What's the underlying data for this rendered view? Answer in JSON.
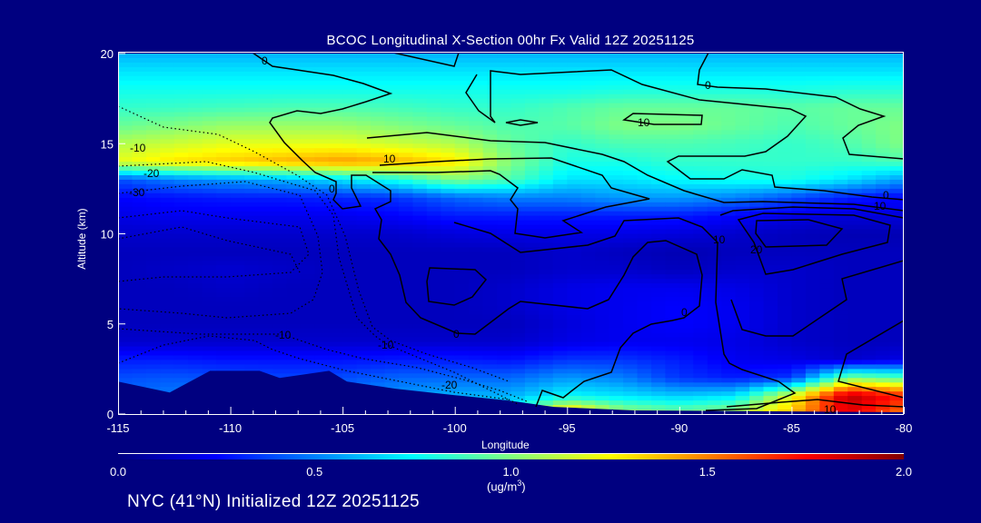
{
  "chart_data": {
    "type": "heatmap",
    "title": "BCOC Longitudinal X-Section 00hr  Fx Valid 12Z 20251125",
    "xlabel": "Longitude",
    "ylabel": "Altitude (km)",
    "xlim": [
      -115,
      -80
    ],
    "ylim": [
      0,
      20
    ],
    "x_ticks": [
      "-115",
      "-110",
      "-105",
      "-100",
      "-95",
      "-90",
      "-85",
      "-80"
    ],
    "x_tick_values": [
      -115,
      -110,
      -105,
      -100,
      -95,
      -90,
      -85,
      -80
    ],
    "y_ticks": [
      "0",
      "5",
      "10",
      "15",
      "20"
    ],
    "y_tick_values": [
      0,
      5,
      10,
      15,
      20
    ],
    "colorbar": {
      "range": [
        0,
        2
      ],
      "tick_labels": [
        "0.0",
        "0.5",
        "1.0",
        "1.5",
        "2.0"
      ],
      "tick_values": [
        0,
        0.5,
        1.0,
        1.5,
        2.0
      ],
      "units_prefix": "(ug/m",
      "units_sup": "3",
      "units_suffix": ")",
      "colors": [
        "#000080",
        "#0000ff",
        "#0080ff",
        "#00ffff",
        "#80ff80",
        "#ffff00",
        "#ff8000",
        "#ff0000",
        "#800000"
      ]
    },
    "lon": [
      -115,
      -112.5,
      -110,
      -107.5,
      -105,
      -102.5,
      -100,
      -97.5,
      -95,
      -92.5,
      -90,
      -87.5,
      -85,
      -82.5,
      -80
    ],
    "alt_desc": [
      20,
      19,
      18,
      17,
      16,
      15,
      14,
      13,
      12,
      11,
      10,
      9,
      8,
      7,
      6,
      5,
      4,
      3,
      2,
      1,
      0
    ],
    "z": [
      [
        0.6,
        0.6,
        0.6,
        0.6,
        0.6,
        0.6,
        0.6,
        0.6,
        0.6,
        0.6,
        0.6,
        0.6,
        0.6,
        0.6,
        0.6
      ],
      [
        0.7,
        0.7,
        0.7,
        0.7,
        0.7,
        0.7,
        0.7,
        0.7,
        0.7,
        0.7,
        0.7,
        0.7,
        0.7,
        0.7,
        0.7
      ],
      [
        0.78,
        0.78,
        0.78,
        0.78,
        0.78,
        0.78,
        0.78,
        0.78,
        0.78,
        0.8,
        0.8,
        0.8,
        0.8,
        0.82,
        0.82
      ],
      [
        0.85,
        0.86,
        0.88,
        0.9,
        0.9,
        0.88,
        0.85,
        0.85,
        0.9,
        0.95,
        0.95,
        0.95,
        0.92,
        0.95,
        0.95
      ],
      [
        0.95,
        1.0,
        1.05,
        1.05,
        1.05,
        1.0,
        0.95,
        0.9,
        0.92,
        1.0,
        1.0,
        0.95,
        0.9,
        0.95,
        1.0
      ],
      [
        1.1,
        1.15,
        1.2,
        1.2,
        1.2,
        1.15,
        1.1,
        0.95,
        0.85,
        0.9,
        0.9,
        0.88,
        0.85,
        0.9,
        1.0
      ],
      [
        1.2,
        1.3,
        1.35,
        1.4,
        1.45,
        1.4,
        1.3,
        1.0,
        0.8,
        0.8,
        0.85,
        0.85,
        0.85,
        0.85,
        0.9
      ],
      [
        0.4,
        0.5,
        0.55,
        0.6,
        0.7,
        0.8,
        1.0,
        0.9,
        0.7,
        0.7,
        0.75,
        0.78,
        0.8,
        0.7,
        0.55
      ],
      [
        0.25,
        0.28,
        0.3,
        0.3,
        0.32,
        0.35,
        0.45,
        0.5,
        0.5,
        0.55,
        0.55,
        0.5,
        0.4,
        0.3,
        0.25
      ],
      [
        0.2,
        0.22,
        0.22,
        0.22,
        0.22,
        0.25,
        0.3,
        0.3,
        0.3,
        0.3,
        0.3,
        0.25,
        0.2,
        0.18,
        0.18
      ],
      [
        0.15,
        0.15,
        0.15,
        0.15,
        0.15,
        0.15,
        0.18,
        0.2,
        0.2,
        0.2,
        0.18,
        0.15,
        0.12,
        0.1,
        0.1
      ],
      [
        0.12,
        0.12,
        0.12,
        0.12,
        0.12,
        0.12,
        0.12,
        0.12,
        0.15,
        0.12,
        0.1,
        0.12,
        0.12,
        0.12,
        0.12
      ],
      [
        0.12,
        0.14,
        0.16,
        0.14,
        0.12,
        0.12,
        0.12,
        0.12,
        0.15,
        0.15,
        0.12,
        0.15,
        0.15,
        0.12,
        0.12
      ],
      [
        0.12,
        0.12,
        0.14,
        0.12,
        0.12,
        0.12,
        0.12,
        0.15,
        0.2,
        0.22,
        0.22,
        0.2,
        0.15,
        0.12,
        0.12
      ],
      [
        0.12,
        0.12,
        0.12,
        0.12,
        0.12,
        0.12,
        0.12,
        0.15,
        0.2,
        0.22,
        0.25,
        0.22,
        0.15,
        0.12,
        0.12
      ],
      [
        0.12,
        0.12,
        0.12,
        0.12,
        0.12,
        0.12,
        0.12,
        0.12,
        0.18,
        0.22,
        0.25,
        0.22,
        0.15,
        0.12,
        0.12
      ],
      [
        0.15,
        0.15,
        0.15,
        0.15,
        0.15,
        0.15,
        0.15,
        0.15,
        0.2,
        0.22,
        0.22,
        0.2,
        0.15,
        0.12,
        0.12
      ],
      [
        0.3,
        0.3,
        0.28,
        0.28,
        0.28,
        0.3,
        0.3,
        0.28,
        0.35,
        0.35,
        0.3,
        0.22,
        0.2,
        0.15,
        0.2
      ],
      [
        0.4,
        0.42,
        0.4,
        0.38,
        0.4,
        0.45,
        0.45,
        0.45,
        0.55,
        0.5,
        0.35,
        0.3,
        0.35,
        1.0,
        0.9
      ],
      [
        0.45,
        0.5,
        0.5,
        0.5,
        0.5,
        0.55,
        0.6,
        0.6,
        0.75,
        0.7,
        0.65,
        0.7,
        1.2,
        1.9,
        1.7
      ],
      [
        0.45,
        0.5,
        0.5,
        0.5,
        0.5,
        0.55,
        0.65,
        0.8,
        1.5,
        1.1,
        1.0,
        1.1,
        1.4,
        1.8,
        1.5
      ]
    ],
    "terrain": {
      "lon": [
        -115,
        -112.7,
        -110.9,
        -108.7,
        -107.8,
        -105.6,
        -104.8,
        -102.6,
        -100,
        -97.6,
        -95.6,
        -92,
        -80
      ],
      "alt": [
        1.8,
        1.2,
        2.4,
        2.4,
        2.0,
        2.4,
        1.8,
        1.4,
        1.05,
        0.75,
        0.4,
        0.2,
        0.1
      ]
    },
    "contour_labels": [
      "0",
      "-10",
      "-20",
      "-30",
      "0",
      "10",
      "0",
      "-10",
      "-10",
      "0",
      "-20",
      "0",
      "10",
      "10",
      "0",
      "10",
      "20",
      "10"
    ]
  },
  "footer": "NYC (41°N) Initialized 12Z 20251125"
}
